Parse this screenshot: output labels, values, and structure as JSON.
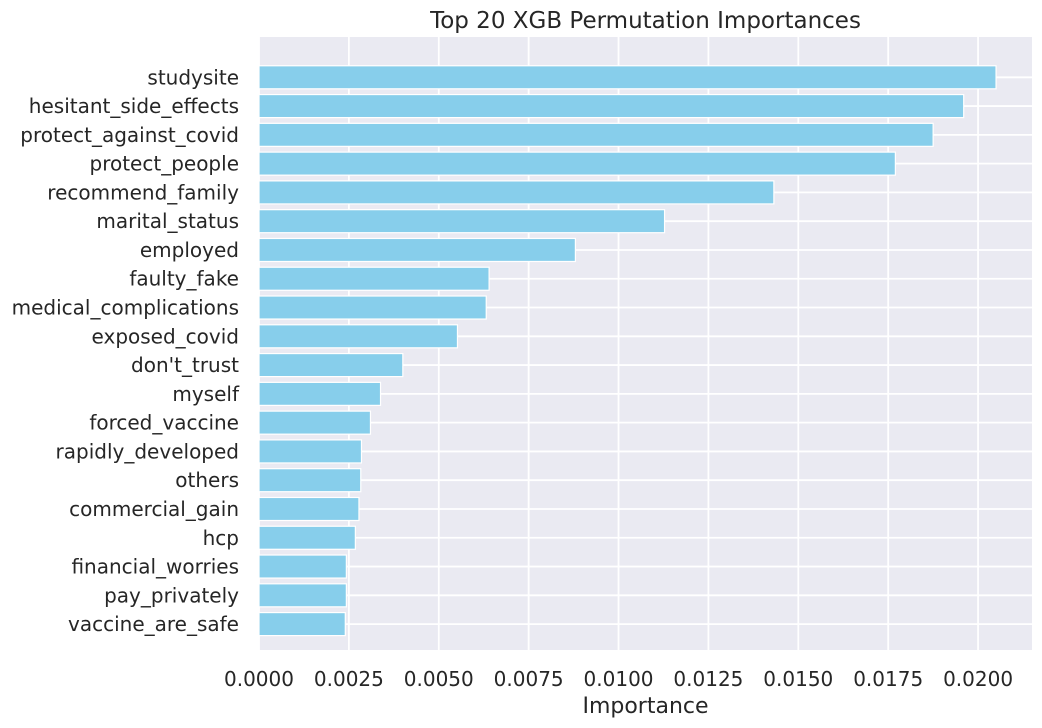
{
  "chart_data": {
    "type": "bar",
    "orientation": "horizontal",
    "title": "Top 20 XGB Permutation Importances",
    "xlabel": "Importance",
    "ylabel": "",
    "xlim": [
      0,
      0.0215
    ],
    "xticks": [
      "0.0000",
      "0.0025",
      "0.0050",
      "0.0075",
      "0.0100",
      "0.0125",
      "0.0150",
      "0.0175",
      "0.0200"
    ],
    "grid": true,
    "bar_color": "#87CEEB",
    "background_color": "#EAEAF2",
    "categories": [
      "studysite",
      "hesitant_side_effects",
      "protect_against_covid",
      "protect_people",
      "recommend_family",
      "marital_status",
      "employed",
      "faulty_fake",
      "medical_complications",
      "exposed_covid",
      "don't_trust",
      "myself",
      "forced_vaccine",
      "rapidly_developed",
      "others",
      "commercial_gain",
      "hcp",
      "financial_worries",
      "pay_privately",
      "vaccine_are_safe"
    ],
    "values": [
      0.0205,
      0.0196,
      0.01875,
      0.0177,
      0.01432,
      0.01128,
      0.0088,
      0.0064,
      0.00632,
      0.00552,
      0.004,
      0.00338,
      0.0031,
      0.00285,
      0.00283,
      0.00278,
      0.00268,
      0.00243,
      0.00243,
      0.0024
    ]
  }
}
